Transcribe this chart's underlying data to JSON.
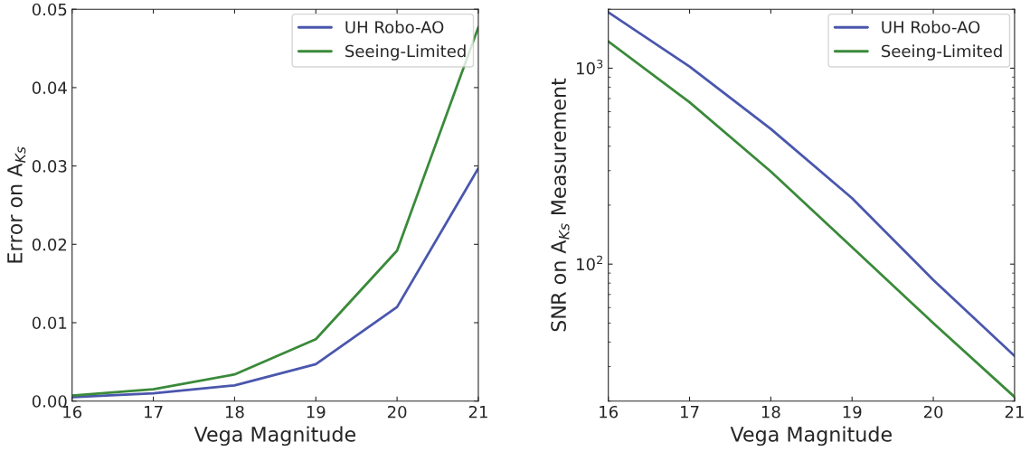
{
  "chart_data": [
    {
      "type": "line",
      "xlabel": "Vega Magnitude",
      "ylabel": "Error on A$_{Ks}$",
      "x": [
        16,
        17,
        18,
        19,
        20,
        21
      ],
      "xlim": [
        16,
        21
      ],
      "xticks": [
        16,
        17,
        18,
        19,
        20,
        21
      ],
      "ylim": [
        0,
        0.05
      ],
      "yticks": [
        {
          "value": 0,
          "label": "0.00"
        },
        {
          "value": 0.01,
          "label": "0.01"
        },
        {
          "value": 0.02,
          "label": "0.02"
        },
        {
          "value": 0.03,
          "label": "0.03"
        },
        {
          "value": 0.04,
          "label": "0.04"
        },
        {
          "value": 0.05,
          "label": "0.05"
        }
      ],
      "legend": "top right",
      "grid": false,
      "series": [
        {
          "name": "UH Robo-AO",
          "color": "#4a57ad",
          "values": [
            0.0005,
            0.001,
            0.002,
            0.0047,
            0.012,
            0.0297
          ]
        },
        {
          "name": "Seeing-Limited",
          "color": "#3a8a3a",
          "values": [
            0.0007,
            0.0015,
            0.0034,
            0.0079,
            0.0192,
            0.0477
          ]
        }
      ]
    },
    {
      "type": "line",
      "xlabel": "Vega Magnitude",
      "ylabel": "SNR on A$_{Ks}$ Measurement",
      "x": [
        16,
        17,
        18,
        19,
        20,
        21
      ],
      "xlim": [
        16,
        21
      ],
      "xticks": [
        16,
        17,
        18,
        19,
        20,
        21
      ],
      "log": "y",
      "ylim": [
        20,
        2000
      ],
      "yticks": [
        {
          "value": 100,
          "label": "10$^{2}$"
        },
        {
          "value": 1000,
          "label": "10$^{3}$"
        }
      ],
      "legend": "top right",
      "grid": false,
      "series": [
        {
          "name": "UH Robo-AO",
          "color": "#4a57ad",
          "values": [
            1930,
            1020,
            490,
            217,
            83,
            34
          ]
        },
        {
          "name": "Seeing-Limited",
          "color": "#3a8a3a",
          "values": [
            1370,
            670,
            297,
            122,
            50,
            21
          ]
        }
      ]
    }
  ]
}
